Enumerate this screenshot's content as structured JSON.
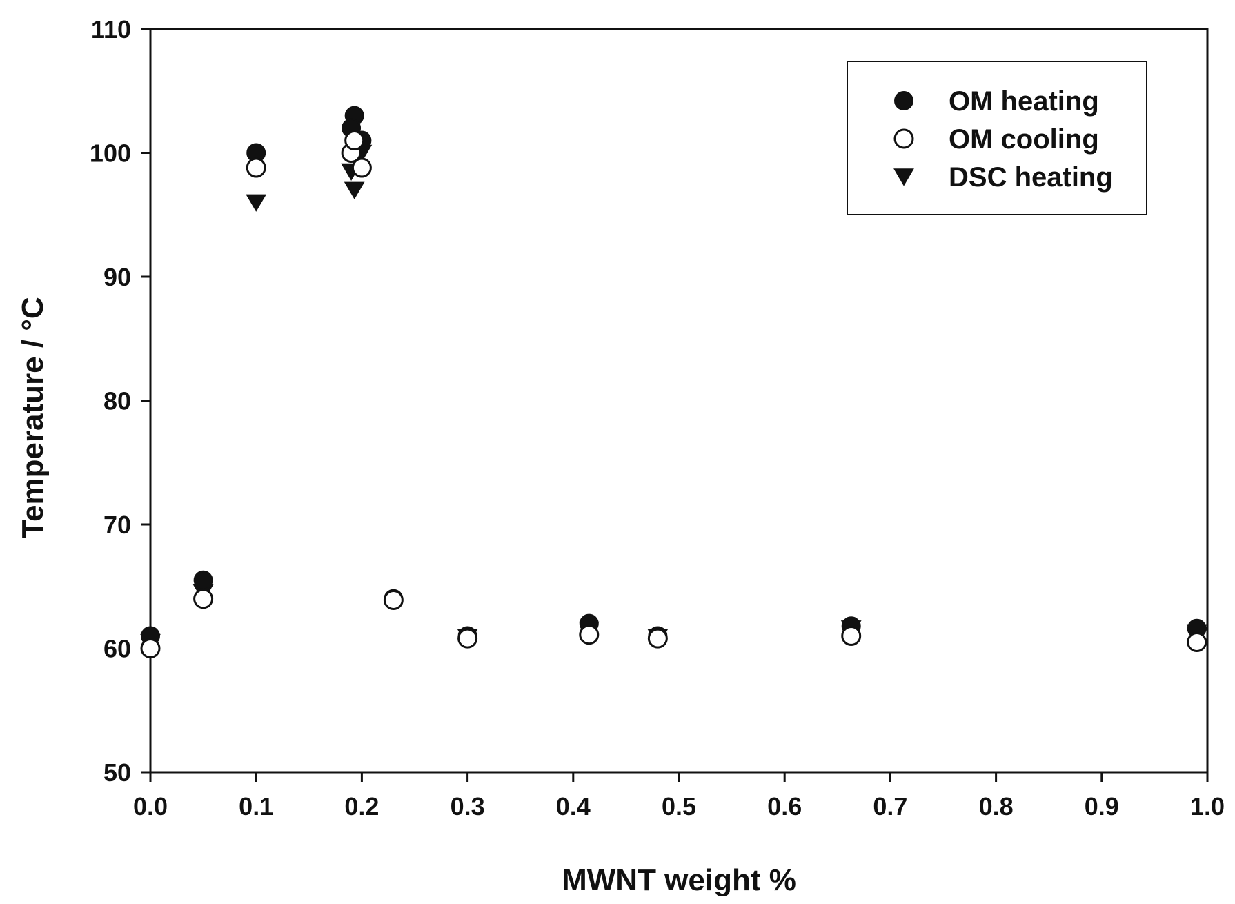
{
  "chart_data": {
    "type": "scatter",
    "title": "",
    "xlabel": "MWNT weight %",
    "ylabel": "Temperature / °C",
    "xlim": [
      0.0,
      1.0
    ],
    "ylim": [
      50,
      110
    ],
    "x_ticks": [
      "0.0",
      "0.1",
      "0.2",
      "0.3",
      "0.4",
      "0.5",
      "0.6",
      "0.7",
      "0.8",
      "0.9",
      "1.0"
    ],
    "y_ticks": [
      "50",
      "60",
      "70",
      "80",
      "90",
      "100",
      "110"
    ],
    "grid": false,
    "legend_position": "top-right",
    "series": [
      {
        "name": "OM heating",
        "marker": "filled-circle",
        "color": "#111111",
        "x": [
          0.0,
          0.05,
          0.1,
          0.193,
          0.19,
          0.2,
          0.23,
          0.3,
          0.415,
          0.48,
          0.663,
          0.99
        ],
        "y": [
          61.0,
          65.5,
          100.0,
          103.0,
          102.0,
          101.0,
          64.0,
          61.0,
          62.0,
          61.0,
          61.8,
          61.6
        ]
      },
      {
        "name": "OM cooling",
        "marker": "open-circle",
        "color": "#111111",
        "x": [
          0.0,
          0.05,
          0.1,
          0.19,
          0.193,
          0.2,
          0.23,
          0.3,
          0.415,
          0.48,
          0.663,
          0.99
        ],
        "y": [
          60.0,
          64.0,
          98.8,
          100.0,
          101.0,
          98.8,
          63.9,
          60.8,
          61.1,
          60.8,
          61.0,
          60.5
        ]
      },
      {
        "name": "DSC heating",
        "marker": "filled-triangle-down",
        "color": "#111111",
        "x": [
          0.0,
          0.05,
          0.1,
          0.193,
          0.19,
          0.2,
          0.3,
          0.415,
          0.48,
          0.663,
          0.99
        ],
        "y": [
          60.5,
          64.5,
          96.0,
          97.0,
          98.5,
          100.0,
          60.9,
          61.5,
          60.9,
          61.6,
          61.3
        ]
      }
    ]
  }
}
